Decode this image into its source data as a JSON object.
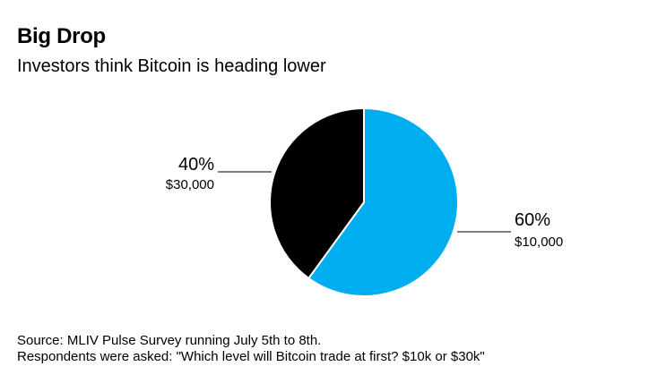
{
  "title": "Big Drop",
  "subtitle": "Investors think Bitcoin is heading lower",
  "chart_data": {
    "type": "pie",
    "slices": [
      {
        "label": "$10,000",
        "value": 60,
        "value_label": "60%",
        "color": "#00adef"
      },
      {
        "label": "$30,000",
        "value": 40,
        "value_label": "40%",
        "color": "#000000"
      }
    ]
  },
  "footer": {
    "source": "Source: MLIV Pulse Survey running July 5th to 8th.",
    "note": "Respondents were asked: \"Which level will Bitcoin trade at first? $10k or $30k\""
  }
}
